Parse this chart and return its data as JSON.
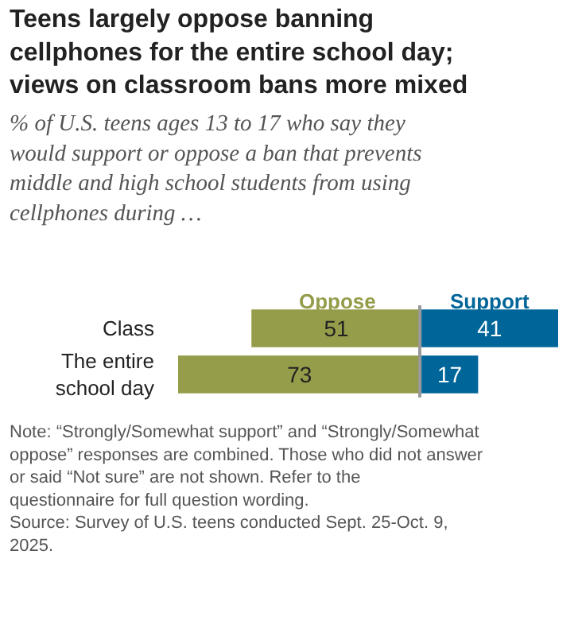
{
  "chart_data": [
    {
      "type": "bar",
      "orientation": "horizontal",
      "title": "Teens largely oppose banning cellphones for the entire school day; views on classroom bans more mixed",
      "subtitle": "% of U.S. teens ages 13 to 17 who say they would support or oppose a ban that prevents middle and high school students from using cellphones during …",
      "categories": [
        "Class",
        "The entire school day"
      ],
      "series": [
        {
          "name": "Oppose",
          "color": "#959c4a",
          "values": [
            51,
            73
          ]
        }
      ],
      "xlim": [
        73,
        0
      ],
      "data_labels": true,
      "tick_labels": "y",
      "annotations": [
        "Note: “Strongly/Somewhat support” and “Strongly/Somewhat oppose” responses are combined. Those who did not answer or said “Not sure” are not shown. Refer to the questionnaire for full question wording.",
        "Source: Survey of U.S. teens conducted Sept. 25-Oct. 9, 2025."
      ]
    },
    {
      "type": "bar",
      "orientation": "horizontal",
      "categories": [
        "Class",
        "The entire school day"
      ],
      "series": [
        {
          "name": "Support",
          "color": "#006699",
          "values": [
            41,
            17
          ]
        }
      ],
      "xlim": [
        0,
        41
      ],
      "data_labels": true,
      "tick_labels": false
    }
  ]
}
